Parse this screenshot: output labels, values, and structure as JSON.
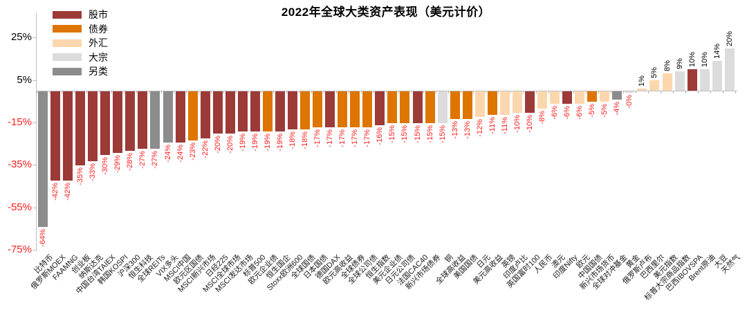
{
  "chart_data": {
    "type": "bar",
    "title": "2022年全球大类资产表现（美元计价）",
    "ylabel": "",
    "xlabel": "",
    "ylim": [
      -75,
      32
    ],
    "grid": false,
    "legend_position": "top-left",
    "yticks": [
      25,
      5,
      -15,
      -35,
      -55,
      -75
    ],
    "ytick_labels": [
      "25%",
      "5%",
      "-15%",
      "-35%",
      "-55%",
      "-75%"
    ],
    "negative_text_color": "#fb2020",
    "positive_text_color": "#000000",
    "legend": [
      {
        "label": "股市",
        "color": "#9c3a38"
      },
      {
        "label": "债券",
        "color": "#dd7500"
      },
      {
        "label": "外汇",
        "color": "#fcd7ad"
      },
      {
        "label": "大宗",
        "color": "#dcdcdc"
      },
      {
        "label": "另类",
        "color": "#8c8c8c"
      }
    ],
    "bars": [
      {
        "label": "比特币",
        "value": -64,
        "display": "-64%",
        "category": "另类"
      },
      {
        "label": "俄罗斯MOEX",
        "value": -42,
        "display": "-42%",
        "category": "股市"
      },
      {
        "label": "FAAMNG",
        "value": -42,
        "display": "-42%",
        "category": "股市"
      },
      {
        "label": "创业板",
        "value": -35,
        "display": "-35%",
        "category": "股市"
      },
      {
        "label": "纳斯达克",
        "value": -33,
        "display": "-33%",
        "category": "股市"
      },
      {
        "label": "中国台湾TAIEX",
        "value": -30,
        "display": "-30%",
        "category": "股市"
      },
      {
        "label": "韩国KOSPI",
        "value": -29,
        "display": "-29%",
        "category": "股市"
      },
      {
        "label": "沪深300",
        "value": -28,
        "display": "-28%",
        "category": "股市"
      },
      {
        "label": "恒生科技",
        "value": -27,
        "display": "-27%",
        "category": "股市"
      },
      {
        "label": "全球REITs",
        "value": -27,
        "display": "-27%",
        "category": "另类"
      },
      {
        "label": "VIX多头",
        "value": -24,
        "display": "-24%",
        "category": "另类"
      },
      {
        "label": "MSCI中国",
        "value": -24,
        "display": "-24%",
        "category": "股市"
      },
      {
        "label": "欧元区国债",
        "value": -23,
        "display": "-23%",
        "category": "债券"
      },
      {
        "label": "MSCI新兴市场",
        "value": -22,
        "display": "-22%",
        "category": "股市"
      },
      {
        "label": "日经225",
        "value": -20,
        "display": "-20%",
        "category": "股市"
      },
      {
        "label": "MSCI全球市场",
        "value": -20,
        "display": "-20%",
        "category": "股市"
      },
      {
        "label": "MSCI发达市场",
        "value": -19,
        "display": "-19%",
        "category": "股市"
      },
      {
        "label": "标普500",
        "value": -19,
        "display": "-19%",
        "category": "股市"
      },
      {
        "label": "欧元企业债",
        "value": -19,
        "display": "-19%",
        "category": "债券"
      },
      {
        "label": "恒生国企",
        "value": -19,
        "display": "-19%",
        "category": "股市"
      },
      {
        "label": "Stoxx欧洲600",
        "value": -18,
        "display": "-18%",
        "category": "股市"
      },
      {
        "label": "全球国债",
        "value": -18,
        "display": "-18%",
        "category": "债券"
      },
      {
        "label": "日本国债",
        "value": -17,
        "display": "-17%",
        "category": "债券"
      },
      {
        "label": "德国DAX",
        "value": -17,
        "display": "-17%",
        "category": "股市"
      },
      {
        "label": "欧元高收益",
        "value": -17,
        "display": "-17%",
        "category": "债券"
      },
      {
        "label": "全球债券",
        "value": -17,
        "display": "-17%",
        "category": "债券"
      },
      {
        "label": "全球公司债",
        "value": -17,
        "display": "-17%",
        "category": "债券"
      },
      {
        "label": "恒生指数",
        "value": -16,
        "display": "-16%",
        "category": "股市"
      },
      {
        "label": "美元企业债",
        "value": -15,
        "display": "-15%",
        "category": "债券"
      },
      {
        "label": "日元公司债",
        "value": -15,
        "display": "-15%",
        "category": "债券"
      },
      {
        "label": "法国CAC40",
        "value": -15,
        "display": "-15%",
        "category": "股市"
      },
      {
        "label": "新兴市场债券",
        "value": -15,
        "display": "-15%",
        "category": "债券"
      },
      {
        "label": "铜",
        "value": -15,
        "display": "-15%",
        "category": "大宗"
      },
      {
        "label": "全球高收益",
        "value": -13,
        "display": "-13%",
        "category": "债券"
      },
      {
        "label": "美国国债",
        "value": -13,
        "display": "-13%",
        "category": "债券"
      },
      {
        "label": "日元",
        "value": -12,
        "display": "-12%",
        "category": "外汇"
      },
      {
        "label": "美元高收益",
        "value": -11,
        "display": "-11%",
        "category": "债券"
      },
      {
        "label": "英镑",
        "value": -11,
        "display": "-11%",
        "category": "外汇"
      },
      {
        "label": "印度卢比",
        "value": -10,
        "display": "-10%",
        "category": "外汇"
      },
      {
        "label": "英国富时100",
        "value": -10,
        "display": "-10%",
        "category": "股市"
      },
      {
        "label": "人民币",
        "value": -8,
        "display": "-8%",
        "category": "外汇"
      },
      {
        "label": "澳元",
        "value": -6,
        "display": "-6%",
        "category": "外汇"
      },
      {
        "label": "印度Nifty",
        "value": -6,
        "display": "-6%",
        "category": "股市"
      },
      {
        "label": "欧元",
        "value": -6,
        "display": "-6%",
        "category": "外汇"
      },
      {
        "label": "中国国债",
        "value": -5,
        "display": "-5%",
        "category": "债券"
      },
      {
        "label": "新兴市场货币",
        "value": -5,
        "display": "-5%",
        "category": "外汇"
      },
      {
        "label": "全球对冲基金",
        "value": -4,
        "display": "-4%",
        "category": "另类"
      },
      {
        "label": "黄金",
        "value": -0.5,
        "display": "-0%",
        "category": "大宗"
      },
      {
        "label": "俄罗斯卢布",
        "value": 1,
        "display": "1%",
        "category": "外汇"
      },
      {
        "label": "巴西里尔",
        "value": 5,
        "display": "5%",
        "category": "外汇"
      },
      {
        "label": "美元指数",
        "value": 8,
        "display": "8%",
        "category": "外汇"
      },
      {
        "label": "标普大宗商品指数",
        "value": 9,
        "display": "9%",
        "category": "大宗"
      },
      {
        "label": "巴西IBOVSPA",
        "value": 10,
        "display": "10%",
        "category": "股市"
      },
      {
        "label": "Brent原油",
        "value": 10,
        "display": "10%",
        "category": "大宗"
      },
      {
        "label": "大豆",
        "value": 14,
        "display": "14%",
        "category": "大宗"
      },
      {
        "label": "天然气",
        "value": 20,
        "display": "20%",
        "category": "大宗"
      }
    ]
  }
}
